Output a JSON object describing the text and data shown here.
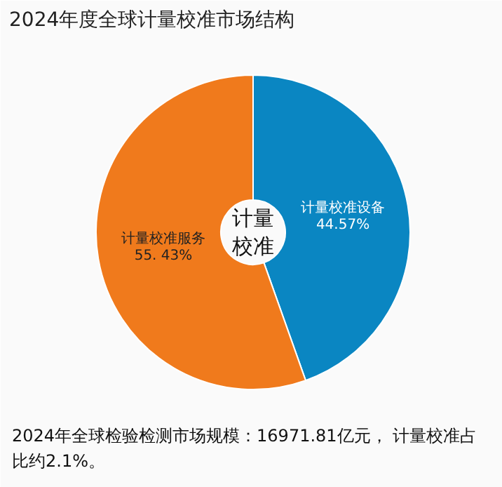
{
  "chart_data": {
    "type": "donut",
    "title": "2024年度全球计量校准市场结构",
    "categories": [
      "计量校准设备",
      "计量校准服务"
    ],
    "values": [
      44.57,
      55.43
    ],
    "value_labels": [
      "44.57%",
      "55. 43%"
    ],
    "colors": [
      "#0a86c2",
      "#f07a1c"
    ],
    "annotations": [
      "计量校准",
      "2024年全球检验检测市场规模：16971.81亿元， 计量校准占比约2.1%。"
    ]
  }
}
